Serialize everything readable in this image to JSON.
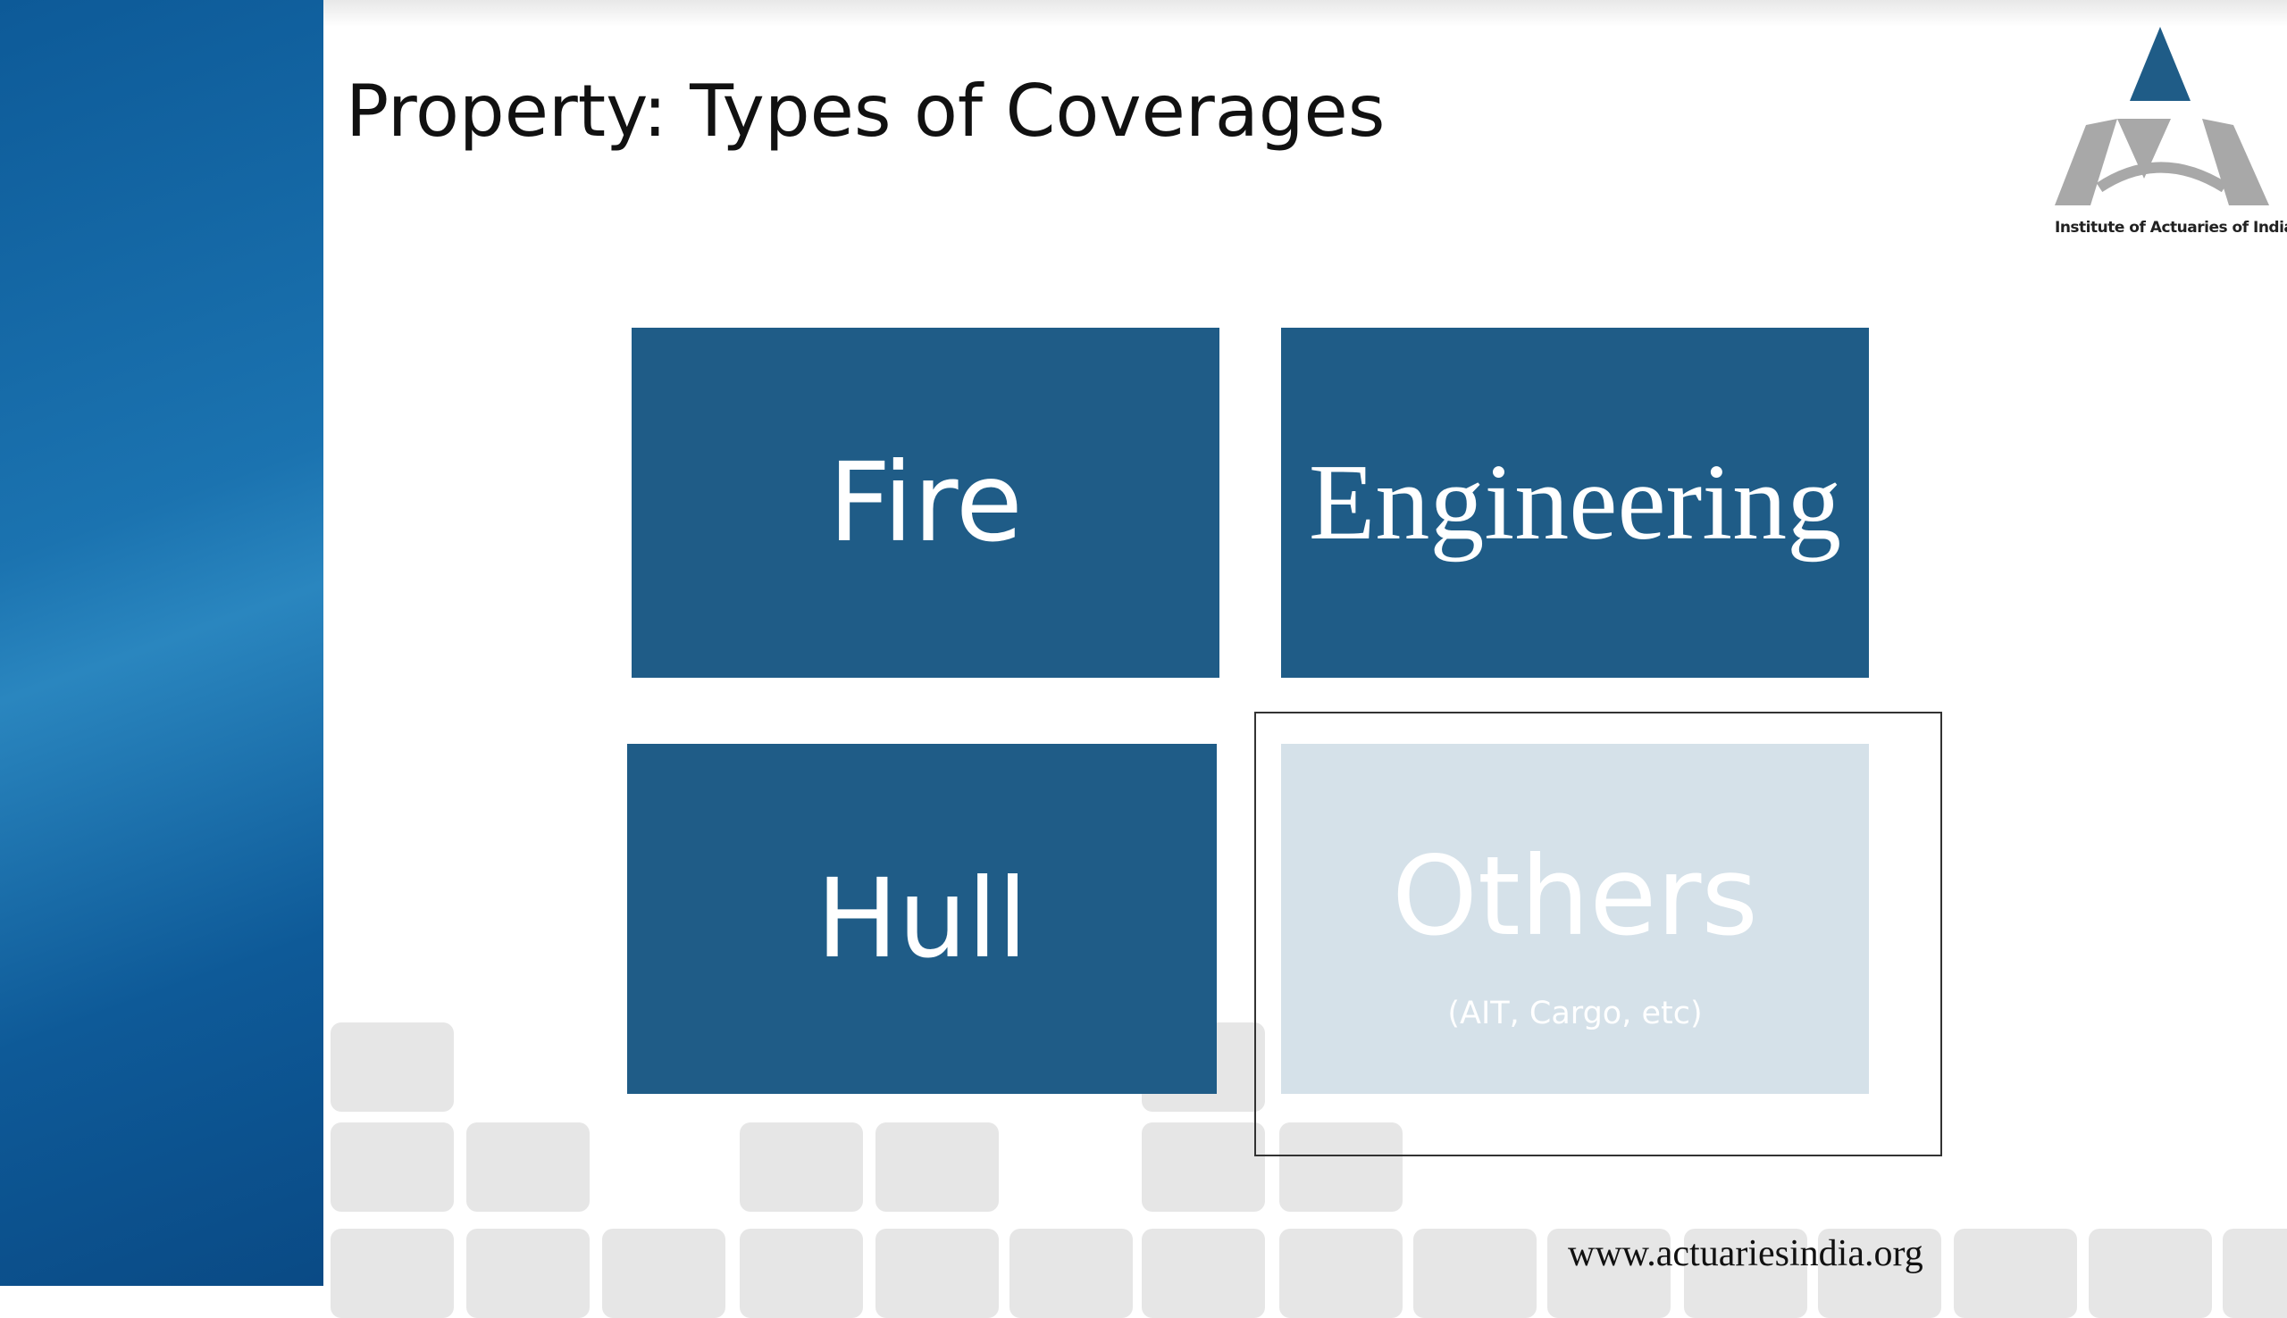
{
  "header": {
    "title": "Property: Types of Coverages",
    "logo_text": "Institute of Actuaries of India"
  },
  "tiles": [
    {
      "label": "Fire"
    },
    {
      "label": "Engineering"
    },
    {
      "label": "Hull"
    },
    {
      "label": "Others",
      "sublabel": "(AIT, Cargo, etc)"
    }
  ],
  "footer": {
    "url": "www.actuariesindia.org"
  }
}
